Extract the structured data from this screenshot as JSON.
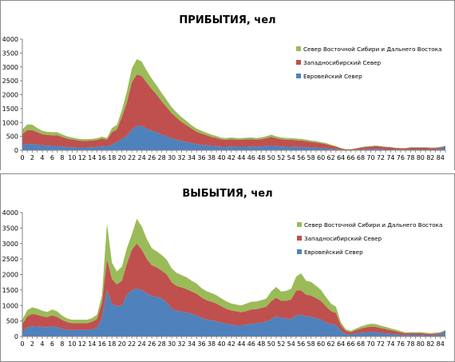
{
  "colors": {
    "north_east": "#9bbb59",
    "west_siberian": "#c0504d",
    "european": "#4f81bd",
    "text": "#000000",
    "grid": "#bfbfbf"
  },
  "chart_data": [
    {
      "type": "area",
      "stacked": true,
      "title": "ПРИБЫТИЯ, чел",
      "xlabel": "",
      "ylabel": "",
      "x": [
        0,
        1,
        2,
        3,
        4,
        5,
        6,
        7,
        8,
        9,
        10,
        11,
        12,
        13,
        14,
        15,
        16,
        17,
        18,
        19,
        20,
        21,
        22,
        23,
        24,
        25,
        26,
        27,
        28,
        29,
        30,
        31,
        32,
        33,
        34,
        35,
        36,
        37,
        38,
        39,
        40,
        41,
        42,
        43,
        44,
        45,
        46,
        47,
        48,
        49,
        50,
        51,
        52,
        53,
        54,
        55,
        56,
        57,
        58,
        59,
        60,
        61,
        62,
        63,
        64,
        65,
        66,
        67,
        68,
        69,
        70,
        71,
        72,
        73,
        74,
        75,
        76,
        77,
        78,
        79,
        80,
        81,
        82,
        83,
        84,
        85
      ],
      "x_ticks": [
        0,
        2,
        4,
        6,
        8,
        10,
        12,
        14,
        16,
        18,
        20,
        22,
        24,
        26,
        28,
        30,
        32,
        34,
        36,
        38,
        40,
        42,
        44,
        46,
        48,
        50,
        52,
        54,
        56,
        58,
        60,
        62,
        64,
        66,
        68,
        70,
        72,
        74,
        76,
        78,
        80,
        82,
        84
      ],
      "ylim": [
        0,
        4000
      ],
      "y_ticks": [
        0,
        500,
        1000,
        1500,
        2000,
        2500,
        3000,
        3500,
        4000
      ],
      "legend_position": "top-right",
      "series": [
        {
          "name": "Евровейский Север",
          "color_key": "european",
          "values": [
            180,
            230,
            220,
            200,
            180,
            170,
            160,
            160,
            140,
            120,
            110,
            100,
            100,
            100,
            110,
            120,
            150,
            140,
            200,
            300,
            400,
            520,
            750,
            880,
            870,
            780,
            700,
            650,
            560,
            500,
            430,
            380,
            330,
            300,
            260,
            220,
            200,
            180,
            160,
            150,
            130,
            130,
            140,
            130,
            130,
            130,
            140,
            130,
            140,
            150,
            160,
            150,
            140,
            130,
            130,
            120,
            120,
            110,
            100,
            90,
            80,
            70,
            50,
            40,
            20,
            10,
            10,
            20,
            30,
            40,
            40,
            50,
            40,
            30,
            30,
            20,
            20,
            20,
            30,
            30,
            30,
            30,
            30,
            30,
            40,
            160
          ]
        },
        {
          "name": "Западносибирский Север",
          "color_key": "west_siberian",
          "values": [
            400,
            500,
            500,
            450,
            400,
            380,
            380,
            380,
            340,
            300,
            280,
            260,
            240,
            240,
            240,
            250,
            270,
            240,
            450,
            450,
            800,
            1200,
            1700,
            1850,
            1800,
            1650,
            1500,
            1350,
            1200,
            1050,
            900,
            790,
            690,
            600,
            520,
            450,
            400,
            360,
            320,
            290,
            260,
            250,
            260,
            250,
            250,
            260,
            260,
            250,
            260,
            280,
            320,
            280,
            260,
            250,
            250,
            240,
            230,
            220,
            200,
            190,
            170,
            150,
            120,
            90,
            50,
            20,
            20,
            40,
            60,
            80,
            90,
            100,
            90,
            80,
            70,
            60,
            50,
            50,
            60,
            60,
            60,
            60,
            50,
            50,
            60,
            0
          ]
        },
        {
          "name": "Север Восточной Сибири и Дальнего Востока",
          "color_key": "north_east",
          "values": [
            170,
            200,
            200,
            150,
            120,
            110,
            110,
            110,
            90,
            80,
            70,
            60,
            60,
            60,
            60,
            60,
            70,
            60,
            150,
            160,
            250,
            400,
            500,
            550,
            520,
            430,
            380,
            330,
            300,
            260,
            220,
            190,
            170,
            150,
            120,
            110,
            100,
            90,
            80,
            70,
            60,
            60,
            60,
            60,
            60,
            60,
            60,
            60,
            60,
            70,
            80,
            70,
            60,
            60,
            60,
            60,
            60,
            50,
            50,
            50,
            40,
            40,
            30,
            20,
            10,
            10,
            10,
            10,
            20,
            20,
            20,
            20,
            20,
            20,
            20,
            10,
            10,
            10,
            20,
            20,
            20,
            20,
            20,
            20,
            20,
            0
          ]
        }
      ]
    },
    {
      "type": "area",
      "stacked": true,
      "title": "ВЫБЫТИЯ, чел",
      "xlabel": "",
      "ylabel": "",
      "x": [
        0,
        1,
        2,
        3,
        4,
        5,
        6,
        7,
        8,
        9,
        10,
        11,
        12,
        13,
        14,
        15,
        16,
        17,
        18,
        19,
        20,
        21,
        22,
        23,
        24,
        25,
        26,
        27,
        28,
        29,
        30,
        31,
        32,
        33,
        34,
        35,
        36,
        37,
        38,
        39,
        40,
        41,
        42,
        43,
        44,
        45,
        46,
        47,
        48,
        49,
        50,
        51,
        52,
        53,
        54,
        55,
        56,
        57,
        58,
        59,
        60,
        61,
        62,
        63,
        64,
        65,
        66,
        67,
        68,
        69,
        70,
        71,
        72,
        73,
        74,
        75,
        76,
        77,
        78,
        79,
        80,
        81,
        82,
        83,
        84,
        85
      ],
      "x_ticks": [
        0,
        2,
        4,
        6,
        8,
        10,
        12,
        14,
        16,
        18,
        20,
        22,
        24,
        26,
        28,
        30,
        32,
        34,
        36,
        38,
        40,
        42,
        44,
        46,
        48,
        50,
        52,
        54,
        56,
        58,
        60,
        62,
        64,
        66,
        68,
        70,
        72,
        74,
        76,
        78,
        80,
        82,
        84
      ],
      "ylim": [
        0,
        4000
      ],
      "y_ticks": [
        0,
        500,
        1000,
        1500,
        2000,
        2500,
        3000,
        3500,
        4000
      ],
      "legend_position": "top-right",
      "series": [
        {
          "name": "Евровейский Север",
          "color_key": "european",
          "values": [
            150,
            300,
            330,
            320,
            310,
            300,
            330,
            300,
            250,
            220,
            210,
            210,
            210,
            210,
            230,
            280,
            600,
            1500,
            1050,
            980,
            1000,
            1350,
            1500,
            1550,
            1500,
            1400,
            1300,
            1280,
            1230,
            1100,
            900,
            830,
            800,
            780,
            730,
            680,
            600,
            550,
            520,
            490,
            450,
            410,
            380,
            360,
            360,
            380,
            400,
            430,
            450,
            480,
            560,
            650,
            600,
            580,
            560,
            680,
            700,
            650,
            640,
            590,
            550,
            450,
            400,
            380,
            180,
            80,
            60,
            100,
            120,
            130,
            150,
            140,
            120,
            100,
            80,
            70,
            50,
            40,
            50,
            50,
            50,
            40,
            40,
            50,
            60,
            200
          ]
        },
        {
          "name": "Западносибирский Север",
          "color_key": "west_siberian",
          "values": [
            250,
            350,
            400,
            380,
            340,
            320,
            350,
            330,
            280,
            240,
            220,
            220,
            220,
            220,
            240,
            280,
            500,
            1000,
            800,
            700,
            800,
            1000,
            1300,
            1450,
            1300,
            1100,
            1000,
            950,
            900,
            900,
            850,
            800,
            780,
            750,
            720,
            700,
            660,
            620,
            600,
            570,
            520,
            480,
            460,
            450,
            420,
            440,
            470,
            450,
            470,
            480,
            580,
            600,
            550,
            570,
            630,
            800,
            790,
            700,
            680,
            650,
            600,
            520,
            420,
            380,
            180,
            100,
            80,
            100,
            130,
            160,
            170,
            170,
            150,
            140,
            120,
            100,
            80,
            60,
            60,
            60,
            60,
            50,
            40,
            40,
            50,
            0
          ]
        },
        {
          "name": "Север Восточной Сибири и Дальнего Востока",
          "color_key": "north_east",
          "values": [
            150,
            200,
            210,
            200,
            180,
            170,
            190,
            180,
            140,
            120,
            110,
            110,
            110,
            110,
            120,
            140,
            220,
            1150,
            530,
            420,
            450,
            500,
            500,
            800,
            750,
            650,
            550,
            520,
            500,
            480,
            450,
            420,
            400,
            380,
            350,
            330,
            300,
            290,
            280,
            270,
            260,
            240,
            220,
            220,
            220,
            240,
            250,
            250,
            250,
            260,
            310,
            350,
            300,
            320,
            350,
            450,
            550,
            450,
            440,
            400,
            350,
            300,
            240,
            200,
            90,
            50,
            40,
            50,
            70,
            80,
            90,
            90,
            80,
            70,
            60,
            50,
            40,
            30,
            30,
            30,
            30,
            30,
            30,
            30,
            30,
            0
          ]
        }
      ]
    }
  ]
}
